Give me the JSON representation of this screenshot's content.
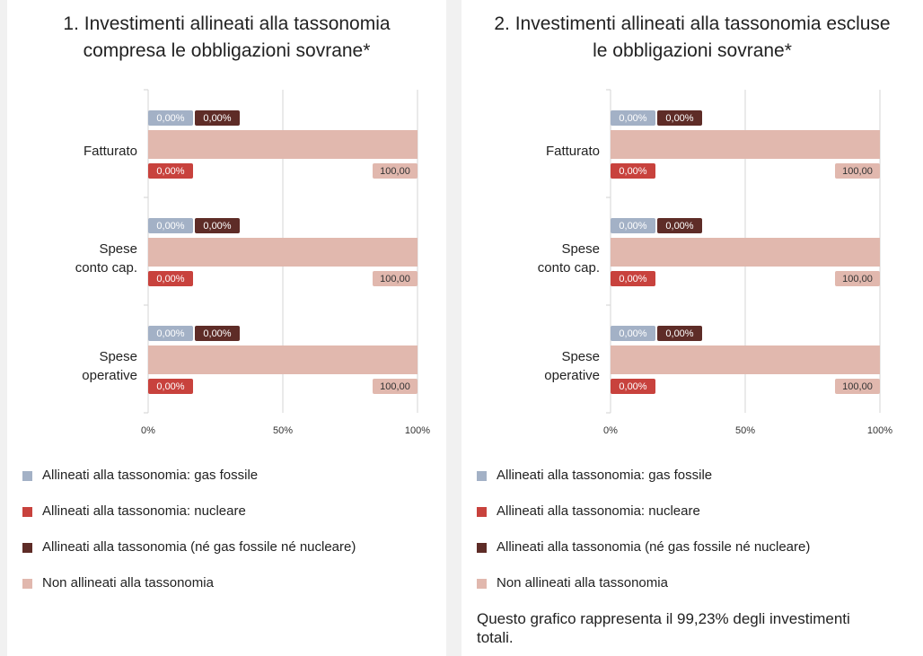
{
  "chart_data": [
    {
      "type": "bar",
      "orientation": "horizontal",
      "title": "1. Investimenti allineati alla tassonomia compresa le obbligazioni sovrane*",
      "categories": [
        "Fatturato",
        "Spese conto cap.",
        "Spese operative"
      ],
      "series": [
        {
          "name": "Allineati alla tassonomia: gas fossile",
          "color": "#a3b1c6",
          "values": [
            0,
            0,
            0
          ],
          "value_labels": [
            "0,00%",
            "0,00%",
            "0,00%"
          ]
        },
        {
          "name": "Allineati alla tassonomia: nucleare",
          "color": "#c8423d",
          "values": [
            0,
            0,
            0
          ],
          "value_labels": [
            "0,00%",
            "0,00%",
            "0,00%"
          ]
        },
        {
          "name": "Allineati alla tassonomia (né gas fossile né nucleare)",
          "color": "#5e2c27",
          "values": [
            0,
            0,
            0
          ],
          "value_labels": [
            "0,00%",
            "0,00%",
            "0,00%"
          ]
        },
        {
          "name": "Non allineati alla tassonomia",
          "color": "#e1b8ae",
          "values": [
            100,
            100,
            100
          ],
          "value_labels": [
            "100,00",
            "100,00",
            "100,00"
          ]
        }
      ],
      "xlim": [
        0,
        100
      ],
      "xticks": [
        {
          "value": 0,
          "label": "0%"
        },
        {
          "value": 50,
          "label": "50%"
        },
        {
          "value": 100,
          "label": "100%"
        }
      ],
      "grid": true
    },
    {
      "type": "bar",
      "orientation": "horizontal",
      "title": "2. Investimenti allineati alla tassonomia escluse le obbligazioni sovrane*",
      "categories": [
        "Fatturato",
        "Spese conto cap.",
        "Spese operative"
      ],
      "series": [
        {
          "name": "Allineati alla tassonomia: gas fossile",
          "color": "#a3b1c6",
          "values": [
            0,
            0,
            0
          ],
          "value_labels": [
            "0,00%",
            "0,00%",
            "0,00%"
          ]
        },
        {
          "name": "Allineati alla tassonomia: nucleare",
          "color": "#c8423d",
          "values": [
            0,
            0,
            0
          ],
          "value_labels": [
            "0,00%",
            "0,00%",
            "0,00%"
          ]
        },
        {
          "name": "Allineati alla tassonomia (né gas fossile né nucleare)",
          "color": "#5e2c27",
          "values": [
            0,
            0,
            0
          ],
          "value_labels": [
            "0,00%",
            "0,00%",
            "0,00%"
          ]
        },
        {
          "name": "Non allineati alla tassonomia",
          "color": "#e1b8ae",
          "values": [
            100,
            100,
            100
          ],
          "value_labels": [
            "100,00",
            "100,00",
            "100,00"
          ]
        }
      ],
      "xlim": [
        0,
        100
      ],
      "xticks": [
        {
          "value": 0,
          "label": "0%"
        },
        {
          "value": 50,
          "label": "50%"
        },
        {
          "value": 100,
          "label": "100%"
        }
      ],
      "grid": true,
      "note": "Questo grafico rappresenta il 99,23% degli investimenti totali."
    }
  ]
}
